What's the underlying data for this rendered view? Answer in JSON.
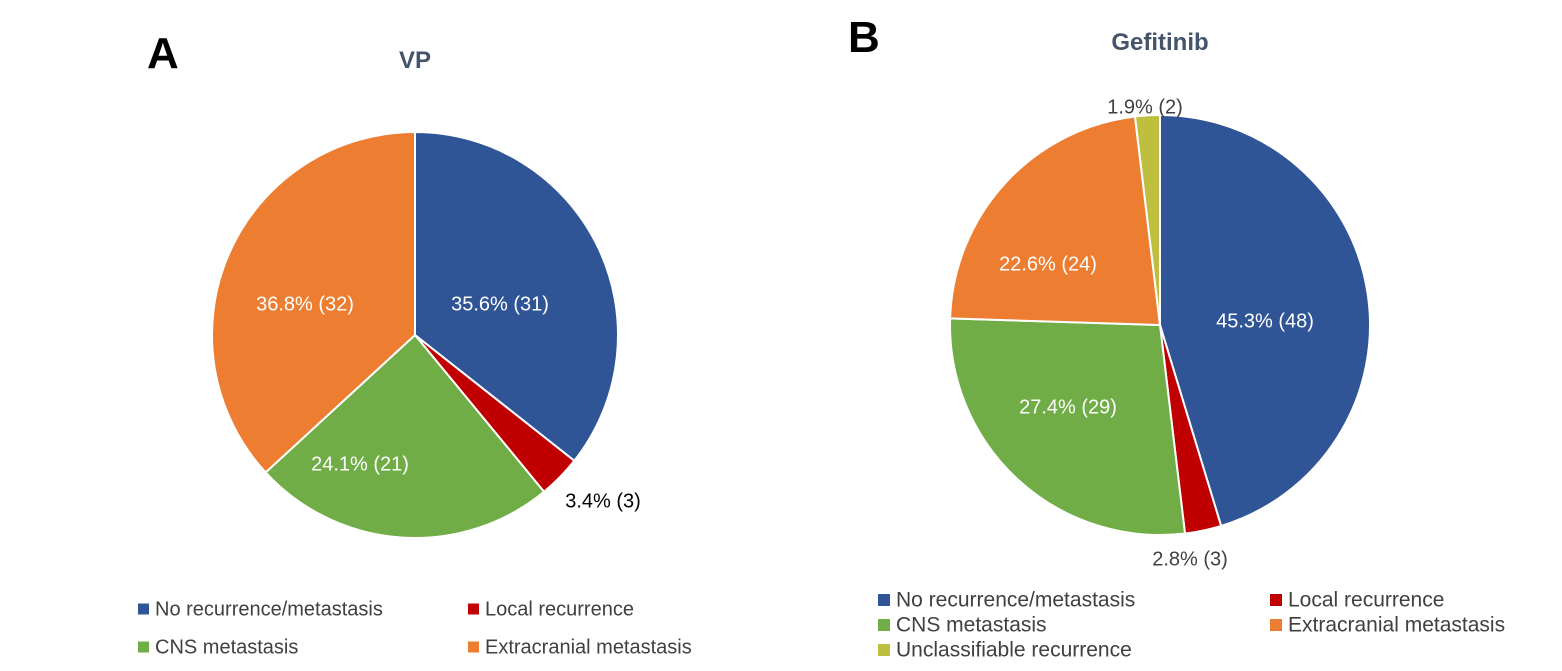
{
  "chart_data": [
    {
      "type": "pie",
      "panel_label": "A",
      "title": "VP",
      "slices": [
        {
          "name": "No recurrence/metastasis",
          "percent": 35.6,
          "count": 31,
          "label": "35.6% (31)",
          "color": "#2f5597"
        },
        {
          "name": "Local recurrence",
          "percent": 3.4,
          "count": 3,
          "label": "3.4% (3)",
          "color": "#c00000"
        },
        {
          "name": "CNS metastasis",
          "percent": 24.1,
          "count": 21,
          "label": "24.1% (21)",
          "color": "#70ad47"
        },
        {
          "name": "Extracranial metastasis",
          "percent": 36.8,
          "count": 32,
          "label": "36.8% (32)",
          "color": "#ed7d31"
        }
      ],
      "legend": [
        "No recurrence/metastasis",
        "Local recurrence",
        "CNS metastasis",
        "Extracranial metastasis"
      ],
      "legend_placement": "bottom"
    },
    {
      "type": "pie",
      "panel_label": "B",
      "title": "Gefitinib",
      "slices": [
        {
          "name": "No recurrence/metastasis",
          "percent": 45.3,
          "count": 48,
          "label": "45.3% (48)",
          "color": "#2f5597"
        },
        {
          "name": "Local recurrence",
          "percent": 2.8,
          "count": 3,
          "label": "2.8% (3)",
          "color": "#c00000"
        },
        {
          "name": "CNS metastasis",
          "percent": 27.4,
          "count": 29,
          "label": "27.4% (29)",
          "color": "#70ad47"
        },
        {
          "name": "Extracranial metastasis",
          "percent": 22.6,
          "count": 24,
          "label": "22.6% (24)",
          "color": "#ed7d31"
        },
        {
          "name": "Unclassifiable recurrence",
          "percent": 1.9,
          "count": 2,
          "label": "1.9% (2)",
          "color": "#bfbf3f"
        }
      ],
      "legend": [
        "No recurrence/metastasis",
        "Local recurrence",
        "CNS metastasis",
        "Extracranial metastasis",
        "Unclassifiable recurrence"
      ],
      "legend_placement": "bottom"
    }
  ]
}
